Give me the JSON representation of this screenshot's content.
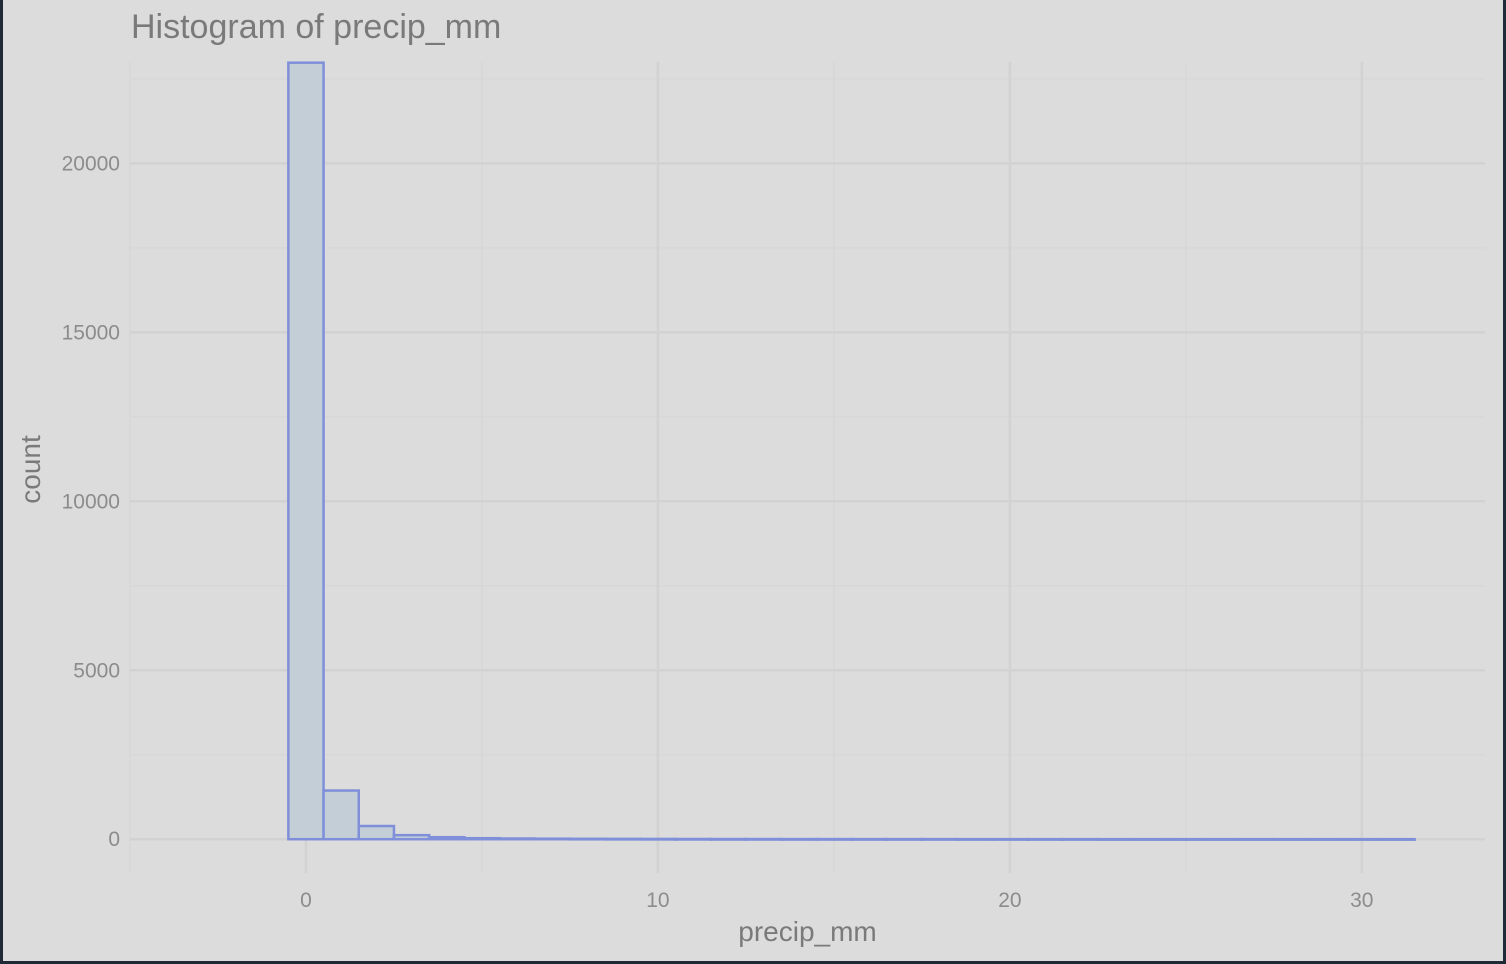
{
  "chart_data": {
    "type": "bar",
    "title": "Histogram of precip_mm",
    "xlabel": "precip_mm",
    "ylabel": "count",
    "bin_width": 1,
    "bins_center": [
      0,
      1,
      2,
      3,
      4,
      5,
      6,
      7,
      8,
      9,
      10,
      11,
      12,
      13,
      14,
      15,
      16,
      17,
      18,
      19,
      20,
      21,
      22,
      23,
      24,
      25,
      26,
      27,
      28,
      29,
      30,
      31
    ],
    "values": [
      22980,
      1440,
      390,
      120,
      60,
      30,
      20,
      15,
      12,
      10,
      8,
      6,
      5,
      5,
      4,
      4,
      3,
      3,
      3,
      2,
      2,
      2,
      2,
      1,
      1,
      1,
      1,
      1,
      1,
      1,
      1,
      1
    ],
    "xlim": [
      -5,
      33.5
    ],
    "ylim": [
      -1000,
      23000
    ],
    "x_ticks": [
      0,
      10,
      20,
      30
    ],
    "x_tick_labels": [
      "0",
      "10",
      "20",
      "30"
    ],
    "y_ticks": [
      0,
      5000,
      10000,
      15000,
      20000
    ],
    "y_tick_labels": [
      "0",
      "5000",
      "10000",
      "15000",
      "20000"
    ],
    "grid": true,
    "colors": {
      "background": "#dcdcdc",
      "bar_fill": "#c3ced6",
      "bar_stroke": "#7f8fd9",
      "grid_major": "#d2d2d2",
      "grid_minor": "#d7d7d7"
    }
  }
}
